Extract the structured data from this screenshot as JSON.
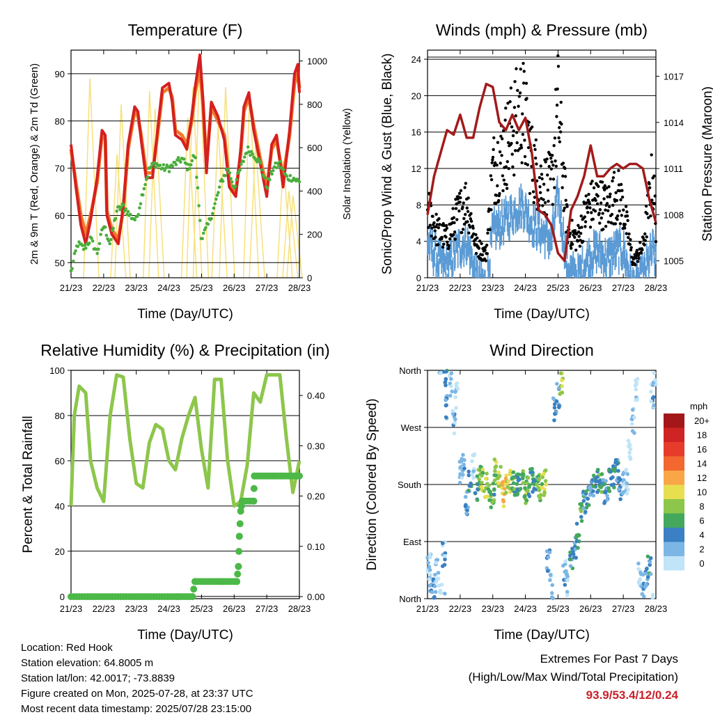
{
  "x_ticks": [
    "21/23",
    "22/23",
    "23/23",
    "24/23",
    "25/23",
    "26/23",
    "27/23",
    "28/23"
  ],
  "colors": {
    "temp_2m": "#d42020",
    "temp_9m": "#f07a28",
    "dewpoint": "#4aae3c",
    "insolation": "#f7e07a",
    "wind": "#5b9bd5",
    "gust": "#000000",
    "pressure": "#a21b1b",
    "rh": "#8dc64c",
    "precip": "#4cb848",
    "grid": "#000000"
  },
  "chart_data": [
    {
      "type": "line",
      "title": "Temperature (F)",
      "xlabel": "Time (Day/UTC)",
      "ylabel": "2m & 9m T (Red, Orange) & 2m Td (Green)",
      "y2label": "Solar Insolation (Yellow)",
      "ylim": [
        46.8,
        95
      ],
      "y_ticks": [
        50,
        60,
        70,
        80,
        90
      ],
      "y2lim": [
        0,
        1050
      ],
      "y2_ticks": [
        0,
        200,
        400,
        600,
        800,
        1000
      ],
      "xlim": [
        0,
        7
      ],
      "series": [
        {
          "key": "temp_2m",
          "x": [
            0,
            0.15,
            0.3,
            0.45,
            0.6,
            0.8,
            0.95,
            1.05,
            1.1,
            1.25,
            1.45,
            1.6,
            1.75,
            1.95,
            2.05,
            2.15,
            2.3,
            2.5,
            2.65,
            2.8,
            3.0,
            3.1,
            3.2,
            3.4,
            3.55,
            3.7,
            3.8,
            3.95,
            4.05,
            4.15,
            4.3,
            4.5,
            4.7,
            4.85,
            5.05,
            5.2,
            5.3,
            5.45,
            5.6,
            5.8,
            6.0,
            6.15,
            6.3,
            6.5,
            6.7,
            6.85,
            6.95,
            7.0
          ],
          "values": [
            75,
            66,
            58,
            54,
            59,
            68,
            78,
            77,
            60,
            56,
            54,
            62,
            75,
            83,
            82,
            76,
            68,
            68,
            78,
            87,
            88,
            84,
            77,
            76,
            74,
            81,
            87,
            94,
            84,
            69,
            84,
            81,
            76,
            66,
            64,
            74,
            83,
            86,
            78,
            71,
            64,
            75,
            77,
            66,
            78,
            90,
            92,
            86
          ]
        },
        {
          "key": "temp_9m",
          "x": [
            0,
            0.15,
            0.3,
            0.45,
            0.6,
            0.8,
            0.95,
            1.05,
            1.1,
            1.25,
            1.45,
            1.6,
            1.75,
            1.95,
            2.05,
            2.15,
            2.3,
            2.5,
            2.65,
            2.8,
            3.0,
            3.1,
            3.2,
            3.4,
            3.55,
            3.7,
            3.8,
            3.95,
            4.05,
            4.15,
            4.3,
            4.5,
            4.7,
            4.85,
            5.05,
            5.2,
            5.3,
            5.45,
            5.6,
            5.8,
            6.0,
            6.15,
            6.3,
            6.5,
            6.7,
            6.85,
            6.95,
            7.0
          ],
          "values": [
            74,
            67,
            60,
            56,
            60,
            67,
            77,
            76,
            61,
            57,
            55,
            61,
            74,
            82,
            81,
            77,
            69,
            69,
            77,
            86,
            87,
            85,
            78,
            77,
            75,
            80,
            86,
            91,
            83,
            71,
            83,
            80,
            77,
            67,
            65,
            73,
            82,
            85,
            79,
            72,
            66,
            74,
            76,
            68,
            77,
            88,
            90,
            87
          ]
        },
        {
          "key": "dewpoint",
          "x": [
            0,
            0.2,
            0.4,
            0.6,
            0.8,
            1.0,
            1.2,
            1.4,
            1.6,
            1.8,
            2.0,
            2.2,
            2.4,
            2.6,
            2.8,
            3.0,
            3.2,
            3.4,
            3.6,
            3.8,
            4.0,
            4.2,
            4.4,
            4.6,
            4.8,
            5.0,
            5.2,
            5.4,
            5.6,
            5.8,
            6.0,
            6.2,
            6.4,
            6.6,
            6.8,
            7.0
          ],
          "values": [
            48,
            54,
            53,
            55,
            52,
            58,
            54,
            61,
            62,
            60,
            59,
            65,
            70,
            71,
            70,
            70,
            71,
            72,
            70,
            73,
            55,
            58,
            62,
            67,
            70,
            66,
            70,
            74,
            73,
            71,
            66,
            70,
            71,
            68,
            68,
            67
          ]
        }
      ],
      "insolation_days": [
        {
          "x": 0.62,
          "peak": 920
        },
        {
          "x": 1.45,
          "peak": 570
        },
        {
          "x": 1.58,
          "peak": 800
        },
        {
          "x": 2.45,
          "peak": 860
        },
        {
          "x": 2.62,
          "peak": 780
        },
        {
          "x": 3.62,
          "peak": 740
        },
        {
          "x": 3.78,
          "peak": 880
        },
        {
          "x": 3.98,
          "peak": 990
        },
        {
          "x": 4.55,
          "peak": 700
        },
        {
          "x": 4.78,
          "peak": 880
        },
        {
          "x": 5.52,
          "peak": 860
        },
        {
          "x": 5.7,
          "peak": 620
        },
        {
          "x": 6.55,
          "peak": 540
        },
        {
          "x": 6.72,
          "peak": 400
        },
        {
          "x": 6.85,
          "peak": 380
        }
      ]
    },
    {
      "type": "scatter",
      "title": "Winds (mph) & Pressure (mb)",
      "xlabel": "Time (Day/UTC)",
      "ylabel": "Sonic/Prop Wind & Gust (Blue, Black)",
      "y2label": "Station Pressure (Maroon)",
      "ylim": [
        0,
        25
      ],
      "y_ticks": [
        0,
        4,
        8,
        12,
        16,
        20,
        24
      ],
      "y2lim": [
        1003.9,
        1018.7
      ],
      "y2_ticks": [
        1005,
        1008,
        1011,
        1014,
        1017
      ],
      "xlim": [
        0,
        7
      ],
      "series": [
        {
          "key": "wind",
          "x": [
            0,
            0.3,
            0.6,
            0.9,
            1.2,
            1.5,
            1.8,
            2.0,
            2.3,
            2.6,
            2.9,
            3.2,
            3.5,
            3.8,
            4.0,
            4.3,
            4.6,
            4.9,
            5.2,
            5.5,
            5.8,
            6.0,
            6.3,
            6.6,
            6.9,
            7.0
          ],
          "values": [
            5,
            3,
            2,
            4,
            5,
            1,
            0,
            6,
            7,
            8,
            9,
            7,
            6,
            5,
            10,
            2,
            1,
            3,
            4,
            3,
            4,
            4,
            0,
            1,
            4,
            3
          ]
        },
        {
          "key": "gust",
          "x": [
            0,
            0.3,
            0.6,
            0.9,
            1.2,
            1.5,
            1.8,
            2.0,
            2.3,
            2.6,
            2.9,
            3.2,
            3.5,
            3.8,
            4.0,
            4.3,
            4.6,
            4.9,
            5.2,
            5.5,
            5.8,
            6.0,
            6.3,
            6.6,
            6.9,
            7.0
          ],
          "values": [
            9,
            6,
            5,
            8,
            10,
            4,
            3,
            14,
            16,
            19,
            22,
            15,
            12,
            12,
            22,
            6,
            5,
            9,
            10,
            9,
            11,
            9,
            2,
            4,
            13,
            7
          ]
        },
        {
          "key": "pressure",
          "x": [
            0,
            0.2,
            0.4,
            0.6,
            0.8,
            1.0,
            1.2,
            1.4,
            1.6,
            1.8,
            2.0,
            2.2,
            2.4,
            2.6,
            2.8,
            3.0,
            3.2,
            3.4,
            3.6,
            3.8,
            4.0,
            4.2,
            4.4,
            4.6,
            4.8,
            5.0,
            5.2,
            5.4,
            5.6,
            5.8,
            6.0,
            6.2,
            6.4,
            6.6,
            6.8,
            7.0
          ],
          "values": [
            1008,
            1010.5,
            1012,
            1013.5,
            1013.2,
            1014.5,
            1013,
            1013,
            1015,
            1016.5,
            1016.3,
            1014,
            1013.5,
            1014.5,
            1013.5,
            1014.3,
            1012,
            1008.3,
            1008,
            1007.3,
            1005.5,
            1005,
            1008.3,
            1009.2,
            1010.5,
            1012.5,
            1010.5,
            1010.5,
            1011,
            1011.3,
            1011,
            1011.3,
            1011.3,
            1011,
            1009,
            1007.5
          ]
        }
      ]
    },
    {
      "type": "line",
      "title": "Relative Humidity (%) & Precipitation (in)",
      "xlabel": "Time (Day/UTC)",
      "ylabel": "Percent & Total Rainfall",
      "ylim": [
        -1,
        100
      ],
      "y_ticks": [
        0,
        20,
        40,
        60,
        80,
        100
      ],
      "y2lim": [
        -0.004,
        0.45
      ],
      "y2_ticks": [
        0.0,
        0.1,
        0.2,
        0.3,
        0.4
      ],
      "y2_tick_labels": [
        "0.00",
        "0.10",
        "0.20",
        "0.30",
        "0.40"
      ],
      "xlim": [
        0,
        7
      ],
      "series": [
        {
          "key": "rh",
          "x": [
            0,
            0.1,
            0.25,
            0.45,
            0.6,
            0.8,
            1.0,
            1.2,
            1.4,
            1.6,
            1.8,
            2.0,
            2.2,
            2.4,
            2.6,
            2.8,
            3.0,
            3.2,
            3.4,
            3.6,
            3.8,
            4.0,
            4.2,
            4.4,
            4.6,
            4.8,
            5.0,
            5.2,
            5.4,
            5.6,
            5.8,
            6.0,
            6.2,
            6.4,
            6.6,
            6.8,
            7.0
          ],
          "values": [
            40,
            80,
            93,
            90,
            60,
            48,
            42,
            80,
            98,
            97,
            70,
            50,
            48,
            68,
            76,
            74,
            60,
            56,
            70,
            80,
            88,
            65,
            48,
            96,
            96,
            60,
            40,
            42,
            58,
            90,
            86,
            98,
            98,
            98,
            70,
            46,
            60
          ]
        },
        {
          "key": "precip",
          "x": [
            0,
            3.72,
            3.8,
            4.6,
            5.08,
            5.13,
            5.16,
            5.2,
            5.25,
            5.3,
            5.6,
            5.62,
            7.0
          ],
          "values": [
            0.0,
            0.0,
            0.03,
            0.03,
            0.03,
            0.06,
            0.12,
            0.17,
            0.19,
            0.19,
            0.19,
            0.24,
            0.24
          ]
        }
      ]
    },
    {
      "type": "scatter",
      "title": "Wind Direction",
      "xlabel": "Time (Day/UTC)",
      "ylabel": "Direction (Colored By Speed)",
      "y_ticks": [
        "North",
        "East",
        "South",
        "West",
        "North"
      ],
      "ylim": [
        0,
        360
      ],
      "xlim": [
        0,
        7
      ],
      "legend_title": "mph",
      "legend": [
        {
          "label": "20+",
          "color": "#a3161a"
        },
        {
          "label": "18",
          "color": "#cf2424"
        },
        {
          "label": "16",
          "color": "#e73c2c"
        },
        {
          "label": "14",
          "color": "#f2682e"
        },
        {
          "label": "12",
          "color": "#f9a647"
        },
        {
          "label": "10",
          "color": "#e8df50"
        },
        {
          "label": "8",
          "color": "#8cc64a"
        },
        {
          "label": "6",
          "color": "#44a85c"
        },
        {
          "label": "4",
          "color": "#3a80c2"
        },
        {
          "label": "2",
          "color": "#7cb6e4"
        },
        {
          "label": "0",
          "color": "#c0e4f8"
        }
      ],
      "series": [
        {
          "key": "direction",
          "x": [
            0.05,
            0.1,
            0.2,
            0.3,
            0.4,
            0.5,
            0.55,
            0.6,
            0.7,
            0.8,
            0.9,
            1.0,
            1.1,
            1.2,
            1.3,
            1.4,
            1.5,
            1.6,
            1.7,
            1.8,
            1.9,
            2.0,
            2.1,
            2.2,
            2.3,
            2.4,
            2.5,
            2.6,
            2.7,
            2.8,
            2.9,
            3.0,
            3.1,
            3.2,
            3.3,
            3.4,
            3.5,
            3.6,
            3.7,
            3.8,
            3.9,
            4.0,
            4.1,
            4.2,
            4.3,
            4.4,
            4.5,
            4.6,
            4.7,
            4.8,
            4.9,
            5.0,
            5.1,
            5.2,
            5.3,
            5.4,
            5.5,
            5.6,
            5.7,
            5.8,
            5.9,
            6.0,
            6.1,
            6.2,
            6.3,
            6.4,
            6.5,
            6.6,
            6.7,
            6.8,
            6.9,
            6.95
          ],
          "values": [
            60,
            30,
            20,
            45,
            15,
            70,
            350,
            300,
            340,
            280,
            320,
            200,
            210,
            150,
            185,
            210,
            175,
            190,
            185,
            180,
            160,
            170,
            200,
            190,
            165,
            180,
            185,
            190,
            175,
            182,
            188,
            170,
            180,
            185,
            190,
            178,
            175,
            183,
            60,
            20,
            300,
            320,
            340,
            40,
            20,
            60,
            80,
            100,
            130,
            150,
            160,
            170,
            175,
            185,
            180,
            170,
            175,
            185,
            190,
            200,
            175,
            180,
            185,
            240,
            280,
            330,
            40,
            20,
            30,
            50,
            320,
            350
          ],
          "speeds": [
            2,
            3,
            4,
            2,
            1,
            3,
            5,
            4,
            2,
            3,
            1,
            2,
            3,
            4,
            5,
            2,
            6,
            8,
            9,
            10,
            8,
            7,
            9,
            10,
            12,
            11,
            9,
            8,
            7,
            6,
            8,
            9,
            7,
            6,
            5,
            8,
            9,
            10,
            3,
            2,
            5,
            4,
            9,
            3,
            2,
            5,
            4,
            6,
            7,
            5,
            6,
            4,
            5,
            6,
            7,
            5,
            4,
            6,
            7,
            5,
            4,
            3,
            2,
            1,
            2,
            1,
            2,
            3,
            4,
            5,
            3,
            2
          ]
        }
      ]
    }
  ],
  "footer": {
    "location": "Location: Red Hook",
    "elevation": "Station elevation: 64.8005 m",
    "latlon": "Station lat/lon: 42.0017; -73.8839",
    "created": "Figure created on Mon, 2025-07-28, at 23:37 UTC",
    "latest": "Most recent data timestamp: 2025/07/28 23:15:00",
    "extremes_title": "Extremes For Past 7 Days",
    "extremes_subtitle": "(High/Low/Max Wind/Total Precipitation)",
    "extremes_values": "93.9/53.4/12/0.24"
  }
}
